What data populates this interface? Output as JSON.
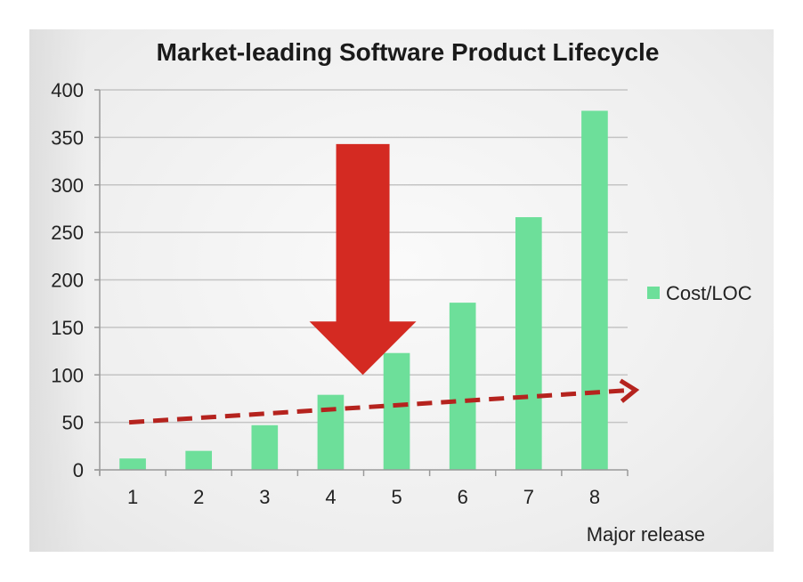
{
  "chart_data": {
    "type": "bar",
    "title": "Market-leading Software Product Lifecycle",
    "xlabel": "Major release",
    "ylabel": "",
    "categories": [
      "1",
      "2",
      "3",
      "4",
      "5",
      "6",
      "7",
      "8"
    ],
    "series": [
      {
        "name": "Cost/LOC",
        "values": [
          12,
          20,
          47,
          79,
          123,
          176,
          266,
          378
        ],
        "color": "#6ddf9a"
      }
    ],
    "ylim": [
      0,
      400
    ],
    "yticks": [
      "0",
      "50",
      "100",
      "150",
      "200",
      "250",
      "300",
      "350",
      "400"
    ],
    "grid": true,
    "legend_position": "right",
    "annotations": {
      "down_arrow": {
        "category": "5",
        "from_value": 343,
        "to_value": 100,
        "color": "#d42a22"
      },
      "trend_line": {
        "from_category": "1",
        "from_value": 50,
        "to_category": "8",
        "to_value": 84,
        "style": "dashed",
        "color": "#b5231e"
      }
    }
  }
}
